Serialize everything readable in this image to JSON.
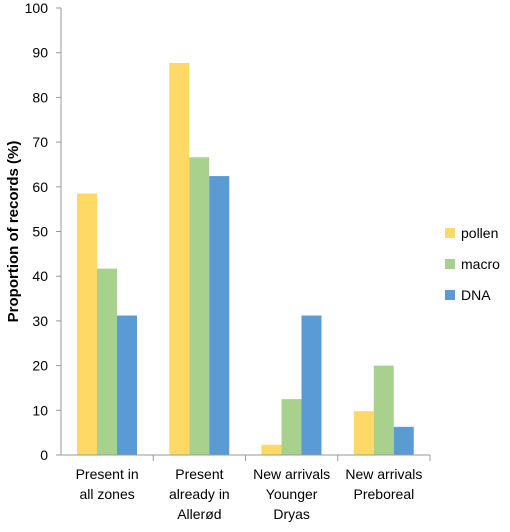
{
  "chart_data": {
    "type": "bar",
    "title": "",
    "xlabel": "",
    "ylabel": "Proportion of records (%)",
    "ylim": [
      0,
      100
    ],
    "yticks": [
      0,
      10,
      20,
      30,
      40,
      50,
      60,
      70,
      80,
      90,
      100
    ],
    "categories": [
      [
        "Present in",
        "all zones"
      ],
      [
        "Present",
        "already in",
        "Allerød"
      ],
      [
        "New arrivals",
        "Younger",
        "Dryas"
      ],
      [
        "New arrivals",
        "Preboreal"
      ]
    ],
    "series": [
      {
        "name": "pollen",
        "color": "#FFD966",
        "values": [
          58.5,
          87.7,
          2.3,
          9.8
        ]
      },
      {
        "name": "macro",
        "color": "#A9D18E",
        "values": [
          41.7,
          66.6,
          12.5,
          20.0
        ]
      },
      {
        "name": "DNA",
        "color": "#5B9BD5",
        "values": [
          31.2,
          62.4,
          31.2,
          6.3
        ]
      }
    ],
    "grid": false,
    "legend_position": "right"
  }
}
